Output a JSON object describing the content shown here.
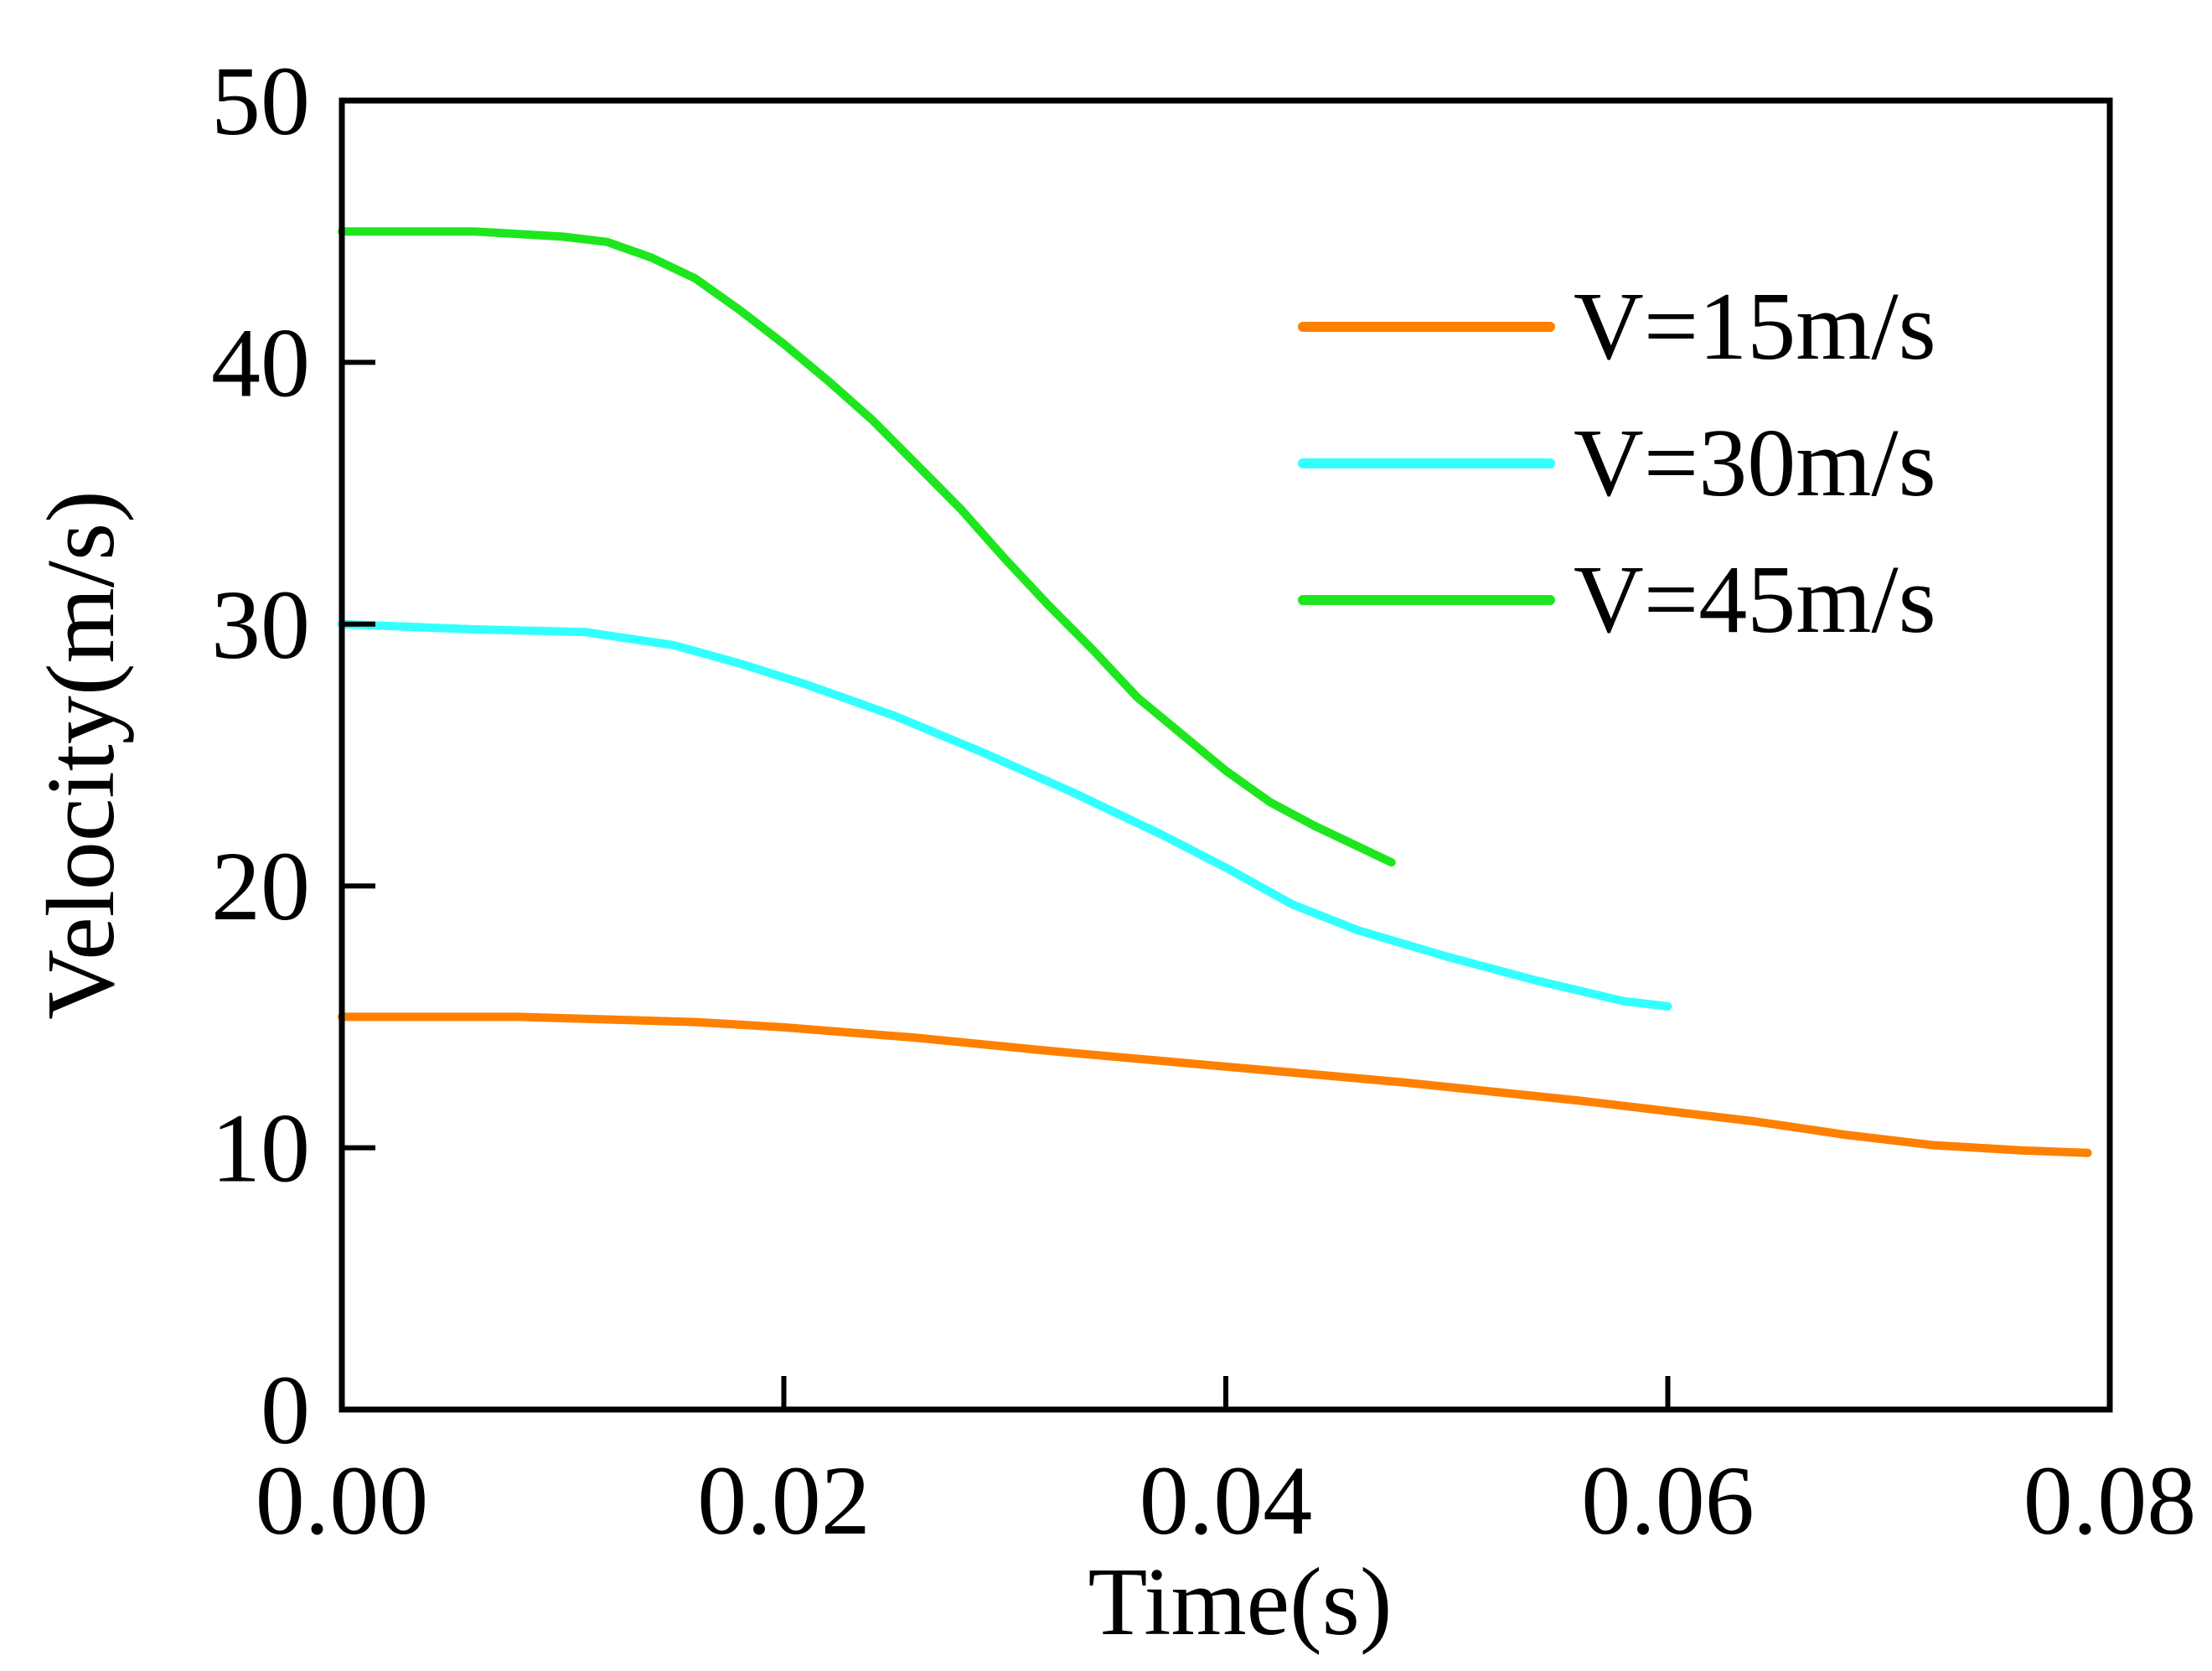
{
  "chart_data": {
    "type": "line",
    "title": "",
    "xlabel": "Time(s)",
    "ylabel": "Velocity(m/s)",
    "xlim": [
      0,
      0.08
    ],
    "ylim": [
      0,
      50
    ],
    "xticks": [
      0.0,
      0.02,
      0.04,
      0.06,
      0.08
    ],
    "xtick_labels": [
      "0.00",
      "0.02",
      "0.04",
      "0.06",
      "0.08"
    ],
    "yticks": [
      0,
      10,
      20,
      30,
      40,
      50
    ],
    "ytick_labels": [
      "0",
      "10",
      "20",
      "30",
      "40",
      "50"
    ],
    "grid": false,
    "legend_position": "top-right",
    "series": [
      {
        "name": "V=15m/s",
        "color": "#ff8000",
        "x": [
          0.0,
          0.008,
          0.016,
          0.02,
          0.026,
          0.032,
          0.04,
          0.048,
          0.056,
          0.06,
          0.064,
          0.068,
          0.072,
          0.076,
          0.079
        ],
        "y": [
          15.0,
          15.0,
          14.8,
          14.6,
          14.2,
          13.7,
          13.1,
          12.5,
          11.8,
          11.4,
          11.0,
          10.5,
          10.1,
          9.9,
          9.8
        ]
      },
      {
        "name": "V=30m/s",
        "color": "#33ffff",
        "x": [
          0.0,
          0.006,
          0.011,
          0.015,
          0.018,
          0.021,
          0.025,
          0.029,
          0.033,
          0.037,
          0.04,
          0.043,
          0.046,
          0.05,
          0.054,
          0.058,
          0.06
        ],
        "y": [
          30.0,
          29.8,
          29.7,
          29.2,
          28.5,
          27.7,
          26.5,
          25.1,
          23.6,
          22.0,
          20.7,
          19.3,
          18.3,
          17.3,
          16.4,
          15.6,
          15.4
        ]
      },
      {
        "name": "V=45m/s",
        "color": "#1ee61e",
        "x": [
          0.0,
          0.006,
          0.01,
          0.012,
          0.014,
          0.016,
          0.018,
          0.02,
          0.022,
          0.024,
          0.026,
          0.028,
          0.03,
          0.032,
          0.034,
          0.036,
          0.038,
          0.04,
          0.042,
          0.044,
          0.0475
        ],
        "y": [
          45.0,
          45.0,
          44.8,
          44.6,
          44.0,
          43.2,
          42.0,
          40.7,
          39.3,
          37.8,
          36.1,
          34.4,
          32.5,
          30.7,
          29.0,
          27.2,
          25.8,
          24.4,
          23.2,
          22.3,
          20.9
        ]
      }
    ]
  }
}
